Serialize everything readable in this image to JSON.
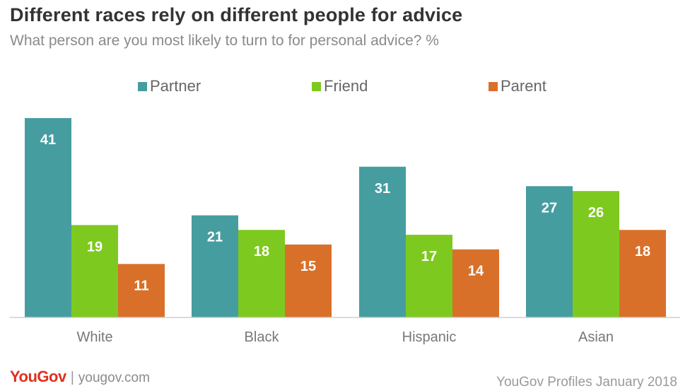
{
  "header": {
    "title": "Different races rely on different people for advice",
    "subtitle": "What person are you most likely to turn to for personal advice? %"
  },
  "footer": {
    "brand": "YouGov",
    "divider": "|",
    "site": "yougov.com",
    "source": "YouGov Profiles January 2018"
  },
  "chart_data": {
    "type": "bar",
    "title": "Different races rely on different people for advice",
    "subtitle": "What person are you most likely to turn to for personal advice? %",
    "categories": [
      "White",
      "Black",
      "Hispanic",
      "Asian"
    ],
    "series": [
      {
        "name": "Partner",
        "color": "#469da0",
        "values": [
          41,
          21,
          31,
          27
        ]
      },
      {
        "name": "Friend",
        "color": "#7ec91f",
        "values": [
          19,
          18,
          17,
          26
        ]
      },
      {
        "name": "Parent",
        "color": "#d9702a",
        "values": [
          11,
          15,
          14,
          18
        ]
      }
    ],
    "ylim": [
      0,
      41
    ],
    "grid": false,
    "legend_position": "top",
    "data_labels": true
  }
}
